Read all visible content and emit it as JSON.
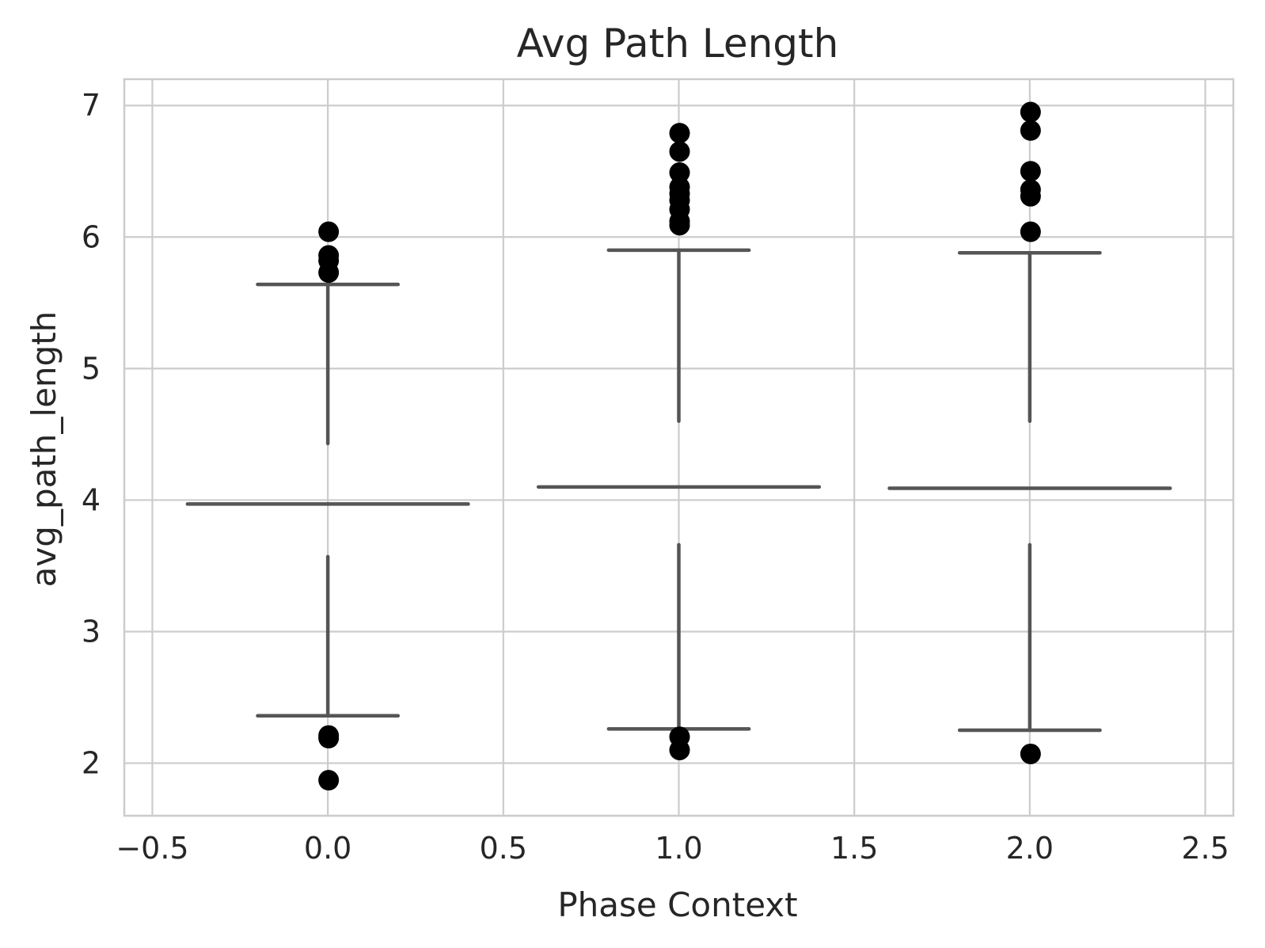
{
  "chart_data": {
    "type": "box",
    "title": "Avg Path Length",
    "xlabel": "Phase Context",
    "ylabel": "avg_path_length",
    "xlim": [
      -0.58,
      2.58
    ],
    "ylim": [
      1.6,
      7.2
    ],
    "x_ticks": [
      -0.5,
      0.0,
      0.5,
      1.0,
      1.5,
      2.0,
      2.5
    ],
    "x_tick_labels": [
      "−0.5",
      "0.0",
      "0.5",
      "1.0",
      "1.5",
      "2.0",
      "2.5"
    ],
    "y_ticks": [
      2,
      3,
      4,
      5,
      6,
      7
    ],
    "y_tick_labels": [
      "2",
      "3",
      "4",
      "5",
      "6",
      "7"
    ],
    "grid": true,
    "line_color": "#555555",
    "outlier_color": "#000000",
    "grid_color": "#cccccc",
    "boxes": [
      {
        "x": 0.0,
        "median": 3.97,
        "q1": 3.57,
        "q3": 4.43,
        "whisker_low": 2.36,
        "whisker_high": 5.64,
        "outliers": [
          6.04,
          5.86,
          5.82,
          5.73,
          2.21,
          2.19,
          1.87
        ]
      },
      {
        "x": 1.0,
        "median": 4.1,
        "q1": 3.66,
        "q3": 4.6,
        "whisker_low": 2.26,
        "whisker_high": 5.9,
        "outliers": [
          6.79,
          6.65,
          6.49,
          6.38,
          6.33,
          6.28,
          6.21,
          6.12,
          6.09,
          2.2,
          2.1
        ]
      },
      {
        "x": 2.0,
        "median": 4.09,
        "q1": 3.66,
        "q3": 4.6,
        "whisker_low": 2.25,
        "whisker_high": 5.88,
        "outliers": [
          6.95,
          6.81,
          6.5,
          6.36,
          6.31,
          6.04,
          2.07
        ]
      }
    ]
  }
}
